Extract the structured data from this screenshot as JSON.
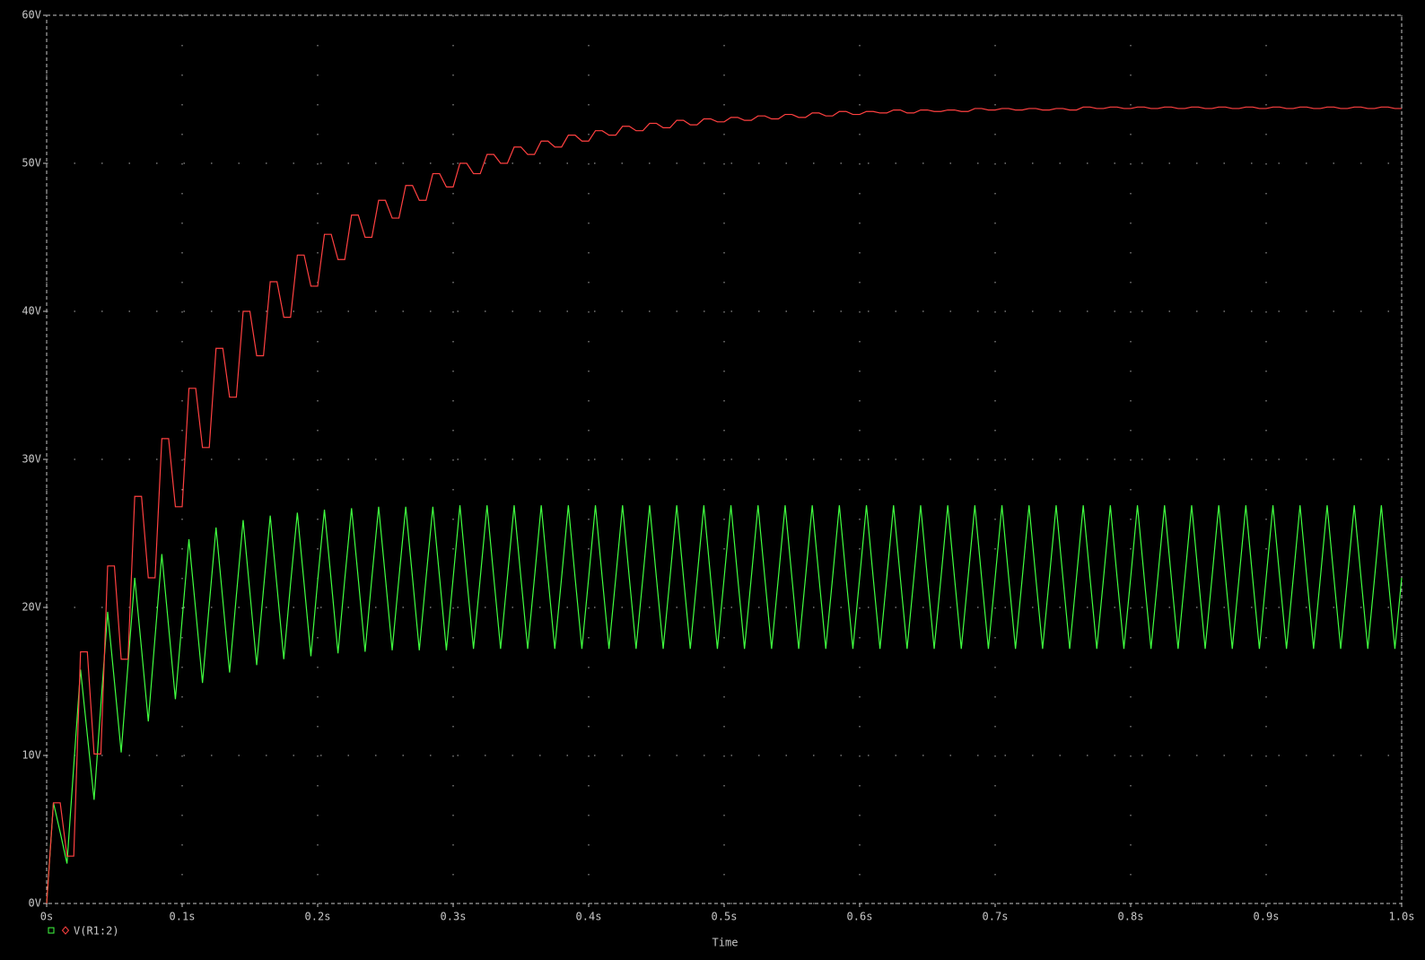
{
  "chart_data": {
    "type": "line",
    "xlabel": "Time",
    "xlim": [
      0,
      1
    ],
    "ylim": [
      0,
      60
    ],
    "xticks": [
      {
        "value": 0,
        "label": "0s"
      },
      {
        "value": 0.1,
        "label": "0.1s"
      },
      {
        "value": 0.2,
        "label": "0.2s"
      },
      {
        "value": 0.3,
        "label": "0.3s"
      },
      {
        "value": 0.4,
        "label": "0.4s"
      },
      {
        "value": 0.5,
        "label": "0.5s"
      },
      {
        "value": 0.6,
        "label": "0.6s"
      },
      {
        "value": 0.7,
        "label": "0.7s"
      },
      {
        "value": 0.8,
        "label": "0.8s"
      },
      {
        "value": 0.9,
        "label": "0.9s"
      },
      {
        "value": 1,
        "label": "1.0s"
      }
    ],
    "yticks": [
      {
        "value": 0,
        "label": "0V"
      },
      {
        "value": 10,
        "label": "10V"
      },
      {
        "value": 20,
        "label": "20V"
      },
      {
        "value": 30,
        "label": "30V"
      },
      {
        "value": 40,
        "label": "40V"
      },
      {
        "value": 50,
        "label": "50V"
      },
      {
        "value": 60,
        "label": "60V"
      }
    ],
    "grid": true,
    "x": [
      0,
      0.005,
      0.01,
      0.015,
      0.02,
      0.025,
      0.03,
      0.035,
      0.04,
      0.045,
      0.05,
      0.055,
      0.06,
      0.065,
      0.07,
      0.075,
      0.08,
      0.085,
      0.09,
      0.095,
      0.1,
      0.105,
      0.11,
      0.115,
      0.12,
      0.125,
      0.13,
      0.135,
      0.14,
      0.145,
      0.15,
      0.155,
      0.16,
      0.165,
      0.17,
      0.175,
      0.18,
      0.185,
      0.19,
      0.195,
      0.2,
      0.205,
      0.21,
      0.215,
      0.22,
      0.225,
      0.23,
      0.235,
      0.24,
      0.245,
      0.25,
      0.255,
      0.26,
      0.265,
      0.27,
      0.275,
      0.28,
      0.285,
      0.29,
      0.295,
      0.3,
      0.305,
      0.31,
      0.315,
      0.32,
      0.325,
      0.33,
      0.335,
      0.34,
      0.345,
      0.35,
      0.355,
      0.36,
      0.365,
      0.37,
      0.375,
      0.38,
      0.385,
      0.39,
      0.395,
      0.4,
      0.405,
      0.41,
      0.415,
      0.42,
      0.425,
      0.43,
      0.435,
      0.44,
      0.445,
      0.45,
      0.455,
      0.46,
      0.465,
      0.47,
      0.475,
      0.48,
      0.485,
      0.49,
      0.495,
      0.5,
      0.505,
      0.51,
      0.515,
      0.52,
      0.525,
      0.53,
      0.535,
      0.54,
      0.545,
      0.55,
      0.555,
      0.56,
      0.565,
      0.57,
      0.575,
      0.58,
      0.585,
      0.59,
      0.595,
      0.6,
      0.605,
      0.61,
      0.615,
      0.62,
      0.625,
      0.63,
      0.635,
      0.64,
      0.645,
      0.65,
      0.655,
      0.66,
      0.665,
      0.67,
      0.675,
      0.68,
      0.685,
      0.69,
      0.695,
      0.7,
      0.705,
      0.71,
      0.715,
      0.72,
      0.725,
      0.73,
      0.735,
      0.74,
      0.745,
      0.75,
      0.755,
      0.76,
      0.765,
      0.77,
      0.775,
      0.78,
      0.785,
      0.79,
      0.795,
      0.8,
      0.805,
      0.81,
      0.815,
      0.82,
      0.825,
      0.83,
      0.835,
      0.84,
      0.845,
      0.85,
      0.855,
      0.86,
      0.865,
      0.87,
      0.875,
      0.88,
      0.885,
      0.89,
      0.895,
      0.9,
      0.905,
      0.91,
      0.915,
      0.92,
      0.925,
      0.93,
      0.935,
      0.94,
      0.945,
      0.95,
      0.955,
      0.96,
      0.965,
      0.97,
      0.975,
      0.98,
      0.985,
      0.99,
      0.995,
      1
    ],
    "series": [
      {
        "color": "#40ff40",
        "values": [
          0,
          6.8,
          4.8,
          2.7,
          9.3,
          15.8,
          11.4,
          7.0,
          13.4,
          19.7,
          15.0,
          10.2,
          16.1,
          22.0,
          17.2,
          12.3,
          18.0,
          23.6,
          18.7,
          13.8,
          19.2,
          24.6,
          19.8,
          14.9,
          20.2,
          25.4,
          20.5,
          15.6,
          20.8,
          25.9,
          21.0,
          16.1,
          21.2,
          26.2,
          21.4,
          16.5,
          21.6,
          26.4,
          21.6,
          16.7,
          21.8,
          26.6,
          21.8,
          16.9,
          21.9,
          26.7,
          21.9,
          17.0,
          22.0,
          26.8,
          22.0,
          17.1,
          22.0,
          26.8,
          22.0,
          17.1,
          22.0,
          26.8,
          22.0,
          17.1,
          22.0,
          26.9,
          22.0,
          17.2,
          22.0,
          26.9,
          22.0,
          17.2,
          22.0,
          26.9,
          22.0,
          17.2,
          22.0,
          26.9,
          22.0,
          17.2,
          22.0,
          26.9,
          22.0,
          17.2,
          22.0,
          26.9,
          22.0,
          17.2,
          22.0,
          26.9,
          22.0,
          17.2,
          22.0,
          26.9,
          22.0,
          17.2,
          22.0,
          26.9,
          22.0,
          17.2,
          22.0,
          26.9,
          22.0,
          17.2,
          22.0,
          26.9,
          22.0,
          17.2,
          22.0,
          26.9,
          22.0,
          17.2,
          22.0,
          26.9,
          22.0,
          17.2,
          22.0,
          26.9,
          22.0,
          17.2,
          22.0,
          26.9,
          22.0,
          17.2,
          22.0,
          26.9,
          22.0,
          17.2,
          22.0,
          26.9,
          22.0,
          17.2,
          22.0,
          26.9,
          22.0,
          17.2,
          22.0,
          26.9,
          22.0,
          17.2,
          22.0,
          26.9,
          22.0,
          17.2,
          22.0,
          26.9,
          22.0,
          17.2,
          22.0,
          26.9,
          22.0,
          17.2,
          22.0,
          26.9,
          22.0,
          17.2,
          22.0,
          26.9,
          22.0,
          17.2,
          22.0,
          26.9,
          22.0,
          17.2,
          22.0,
          26.9,
          22.0,
          17.2,
          22.0,
          26.9,
          22.0,
          17.2,
          22.0,
          26.9,
          22.0,
          17.2,
          22.0,
          26.9,
          22.0,
          17.2,
          22.0,
          26.9,
          22.0,
          17.2,
          22.0,
          26.9,
          22.0,
          17.2,
          22.0,
          26.9,
          22.0,
          17.2,
          22.0,
          26.9,
          22.0,
          17.2,
          22.0,
          26.9,
          22.0,
          17.2,
          22.0,
          26.9,
          22.0,
          17.2,
          22.0
        ]
      },
      {
        "name": "V(R1:2)",
        "color": "#ff4040",
        "values": [
          0,
          6.8,
          6.8,
          3.2,
          3.2,
          17.0,
          17.0,
          10.1,
          10.1,
          22.8,
          22.8,
          16.5,
          16.5,
          27.5,
          27.5,
          22.0,
          22.0,
          31.4,
          31.4,
          26.8,
          26.8,
          34.8,
          34.8,
          30.8,
          30.8,
          37.5,
          37.5,
          34.2,
          34.2,
          40.0,
          40.0,
          37.0,
          37.0,
          42.0,
          42.0,
          39.6,
          39.6,
          43.8,
          43.8,
          41.7,
          41.7,
          45.2,
          45.2,
          43.5,
          43.5,
          46.5,
          46.5,
          45.0,
          45.0,
          47.5,
          47.5,
          46.3,
          46.3,
          48.5,
          48.5,
          47.5,
          47.5,
          49.3,
          49.3,
          48.4,
          48.4,
          50.0,
          50.0,
          49.3,
          49.3,
          50.6,
          50.6,
          50.0,
          50.0,
          51.1,
          51.1,
          50.6,
          50.6,
          51.5,
          51.5,
          51.1,
          51.1,
          51.9,
          51.9,
          51.5,
          51.5,
          52.2,
          52.2,
          51.9,
          51.9,
          52.5,
          52.5,
          52.2,
          52.2,
          52.7,
          52.7,
          52.4,
          52.4,
          52.9,
          52.9,
          52.6,
          52.6,
          53.0,
          53.0,
          52.8,
          52.8,
          53.1,
          53.1,
          52.9,
          52.9,
          53.2,
          53.2,
          53.0,
          53.0,
          53.3,
          53.3,
          53.1,
          53.1,
          53.4,
          53.4,
          53.2,
          53.2,
          53.5,
          53.5,
          53.3,
          53.3,
          53.5,
          53.5,
          53.4,
          53.4,
          53.6,
          53.6,
          53.4,
          53.4,
          53.6,
          53.6,
          53.5,
          53.5,
          53.6,
          53.6,
          53.5,
          53.5,
          53.7,
          53.7,
          53.6,
          53.6,
          53.7,
          53.7,
          53.6,
          53.6,
          53.7,
          53.7,
          53.6,
          53.6,
          53.7,
          53.7,
          53.6,
          53.6,
          53.8,
          53.8,
          53.7,
          53.7,
          53.8,
          53.8,
          53.7,
          53.7,
          53.8,
          53.8,
          53.7,
          53.7,
          53.8,
          53.8,
          53.7,
          53.7,
          53.8,
          53.8,
          53.7,
          53.7,
          53.8,
          53.8,
          53.7,
          53.7,
          53.8,
          53.8,
          53.7,
          53.7,
          53.8,
          53.8,
          53.7,
          53.7,
          53.8,
          53.8,
          53.7,
          53.7,
          53.8,
          53.8,
          53.7,
          53.7,
          53.8,
          53.8,
          53.7,
          53.7,
          53.8,
          53.8,
          53.7,
          53.7
        ]
      }
    ]
  }
}
